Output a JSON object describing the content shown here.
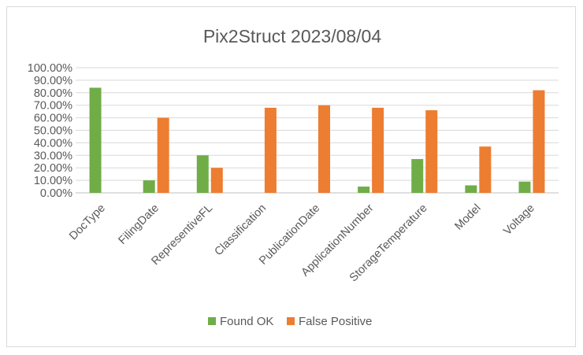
{
  "chart_data": {
    "type": "bar",
    "title": "Pix2Struct 2023/08/04",
    "categories": [
      "DocType",
      "FilingDate",
      "RepresentiveFL",
      "Classification",
      "PublicationDate",
      "ApplicationNumber",
      "StorageTemperature",
      "Model",
      "Voltage"
    ],
    "series": [
      {
        "name": "Found OK",
        "color": "#70ad47",
        "values": [
          0.84,
          0.1,
          0.3,
          0.0,
          0.0,
          0.05,
          0.27,
          0.06,
          0.09
        ]
      },
      {
        "name": "False Positive",
        "color": "#ed7d31",
        "values": [
          0.0,
          0.6,
          0.2,
          0.68,
          0.7,
          0.68,
          0.66,
          0.37,
          0.82
        ]
      }
    ],
    "ylim": [
      0,
      1.0
    ],
    "yticks": [
      "0.00%",
      "10.00%",
      "20.00%",
      "30.00%",
      "40.00%",
      "50.00%",
      "60.00%",
      "70.00%",
      "80.00%",
      "90.00%",
      "100.00%"
    ],
    "grid": true,
    "legend_position": "bottom"
  }
}
